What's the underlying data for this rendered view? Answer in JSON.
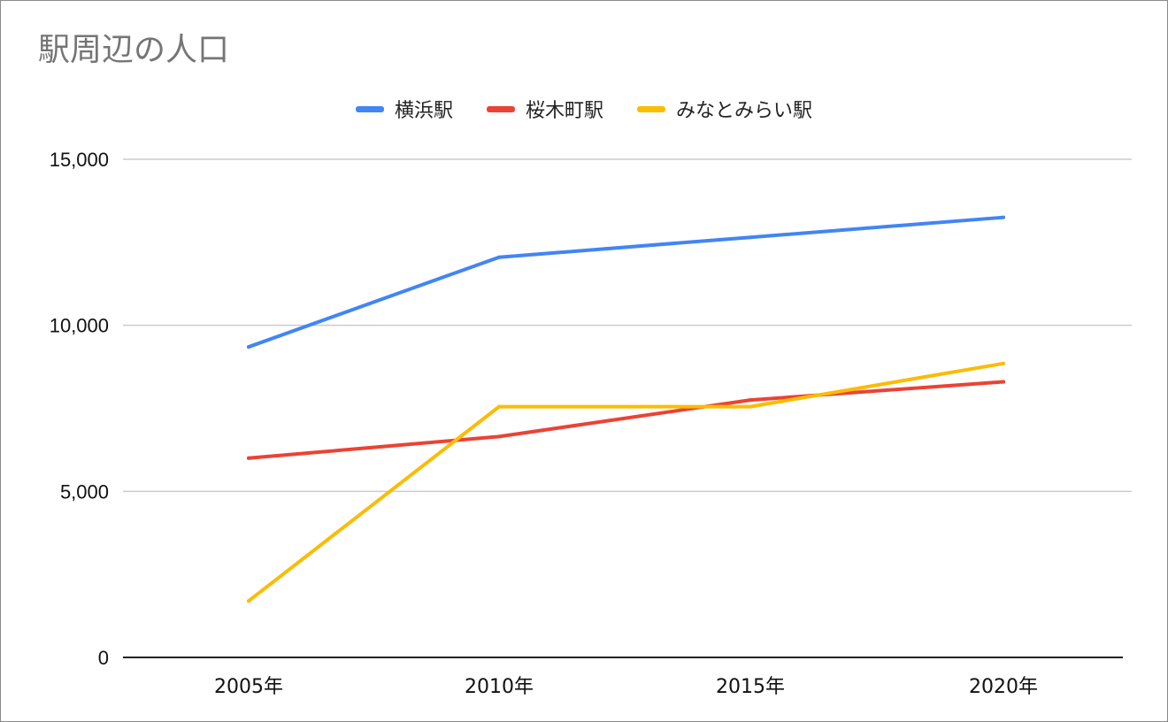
{
  "chart_data": {
    "type": "line",
    "title": "駅周辺の人口",
    "xlabel": "",
    "ylabel": "",
    "categories": [
      "2005年",
      "2010年",
      "2015年",
      "2020年"
    ],
    "ylim": [
      0,
      15000
    ],
    "yticks": [
      0,
      5000,
      10000,
      15000
    ],
    "ytick_labels": [
      "0",
      "5,000",
      "10,000",
      "15,000"
    ],
    "grid": true,
    "legend_position": "top",
    "series": [
      {
        "name": "横浜駅",
        "color": "#4285F4",
        "values": [
          9350,
          12050,
          12650,
          13250
        ]
      },
      {
        "name": "桜木町駅",
        "color": "#EA4335",
        "values": [
          6000,
          6650,
          7750,
          8300
        ]
      },
      {
        "name": "みなとみらい駅",
        "color": "#FBBC04",
        "values": [
          1700,
          7550,
          7550,
          8850
        ]
      }
    ]
  }
}
